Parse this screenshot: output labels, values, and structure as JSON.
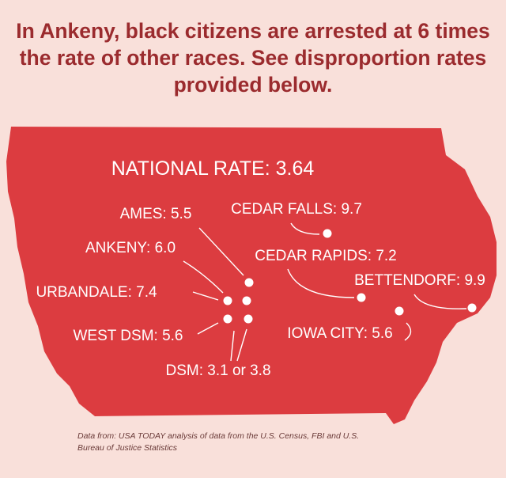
{
  "headline": "In Ankeny, black citizens are arrested at 6 times the rate of other races. See disproportion rates provided below.",
  "map": {
    "national_rate": "NATIONAL RATE: 3.64",
    "cities": [
      {
        "name": "AMES",
        "label": "AMES: 5.5",
        "rate": 5.5
      },
      {
        "name": "CEDAR FALLS",
        "label": "CEDAR FALLS: 9.7",
        "rate": 9.7
      },
      {
        "name": "ANKENY",
        "label": "ANKENY: 6.0",
        "rate": 6.0
      },
      {
        "name": "CEDAR RAPIDS",
        "label": "CEDAR RAPIDS: 7.2",
        "rate": 7.2
      },
      {
        "name": "BETTENDORF",
        "label": "BETTENDORF: 9.9",
        "rate": 9.9
      },
      {
        "name": "URBANDALE",
        "label": "URBANDALE: 7.4",
        "rate": 7.4
      },
      {
        "name": "WEST DSM",
        "label": "WEST DSM: 5.6",
        "rate": 5.6
      },
      {
        "name": "IOWA CITY",
        "label": "IOWA CITY: 5.6",
        "rate": 5.6
      },
      {
        "name": "DSM",
        "label": "DSM: 3.1 or 3.8",
        "rate": "3.1 or 3.8"
      }
    ],
    "colors": {
      "state": "#dc3c40",
      "background": "#f9e0da",
      "headline": "#9b2b2e"
    }
  },
  "source_note": "Data from: USA TODAY analysis of data from the U.S. Census, FBI and U.S. Bureau of Justice Statistics"
}
